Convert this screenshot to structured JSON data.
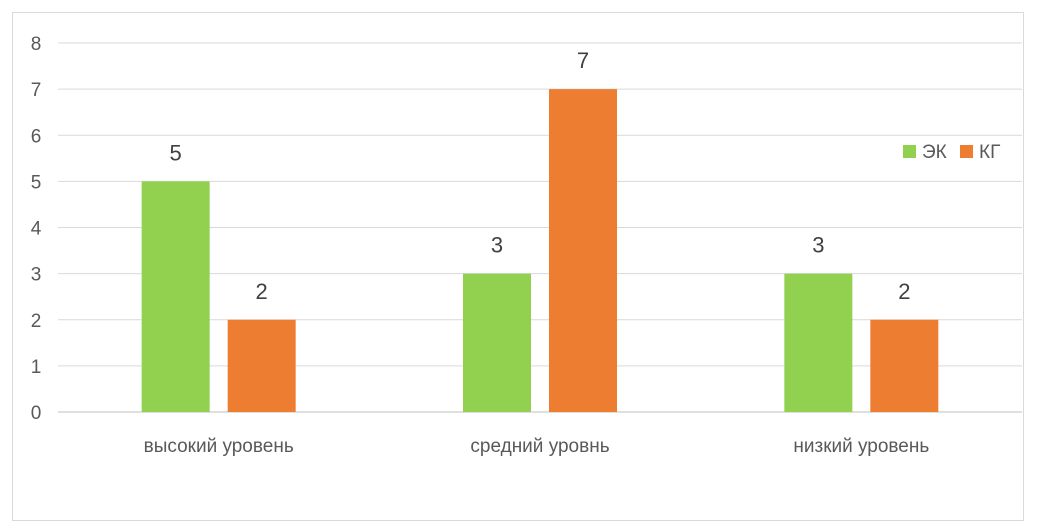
{
  "chart_data": {
    "type": "bar",
    "categories": [
      "высокий уровень",
      "средний уровнь",
      "низкий уровень"
    ],
    "series": [
      {
        "name": "ЭК",
        "values": [
          5,
          3,
          3
        ],
        "color": "#92d050"
      },
      {
        "name": "КГ",
        "values": [
          2,
          7,
          2
        ],
        "color": "#ed7d31"
      }
    ],
    "ylim": [
      0,
      8
    ],
    "yticks": [
      0,
      1,
      2,
      3,
      4,
      5,
      6,
      7,
      8
    ],
    "grid": true,
    "legend_position": "right",
    "data_labels": true
  }
}
